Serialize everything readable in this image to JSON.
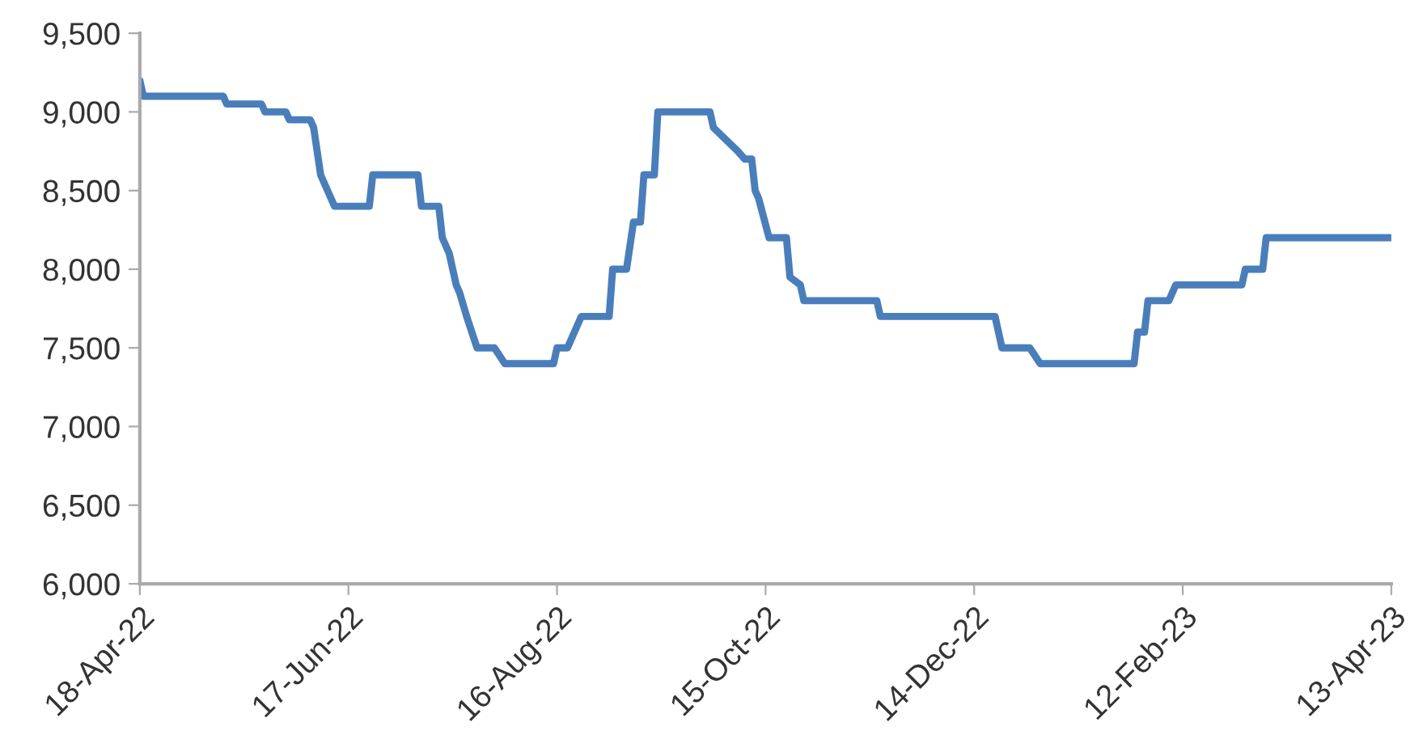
{
  "chart_data": {
    "type": "line",
    "x": [
      "2022-04-18",
      "2022-04-19",
      "2022-05-12",
      "2022-05-13",
      "2022-05-23",
      "2022-05-24",
      "2022-05-30",
      "2022-05-31",
      "2022-06-06",
      "2022-06-07",
      "2022-06-09",
      "2022-06-11",
      "2022-06-13",
      "2022-06-23",
      "2022-06-24",
      "2022-07-07",
      "2022-07-08",
      "2022-07-13",
      "2022-07-14",
      "2022-07-16",
      "2022-07-18",
      "2022-07-19",
      "2022-07-21",
      "2022-07-24",
      "2022-07-29",
      "2022-08-01",
      "2022-08-15",
      "2022-08-16",
      "2022-08-19",
      "2022-08-21",
      "2022-08-23",
      "2022-08-31",
      "2022-09-01",
      "2022-09-05",
      "2022-09-07",
      "2022-09-09",
      "2022-09-10",
      "2022-09-13",
      "2022-09-14",
      "2022-09-29",
      "2022-09-30",
      "2022-10-07",
      "2022-10-09",
      "2022-10-11",
      "2022-10-12",
      "2022-10-13",
      "2022-10-16",
      "2022-10-21",
      "2022-10-22",
      "2022-10-25",
      "2022-10-26",
      "2022-11-16",
      "2022-11-17",
      "2022-12-20",
      "2022-12-22",
      "2022-12-30",
      "2023-01-02",
      "2023-01-29",
      "2023-01-30",
      "2023-02-01",
      "2023-02-02",
      "2023-02-08",
      "2023-02-10",
      "2023-03-01",
      "2023-03-02",
      "2023-03-07",
      "2023-03-08",
      "2023-04-13"
    ],
    "series": [
      {
        "color": "#4a7ebb",
        "values": [
          9200,
          9100,
          9100,
          9050,
          9050,
          9000,
          9000,
          8950,
          8950,
          8900,
          8600,
          8500,
          8400,
          8400,
          8600,
          8600,
          8400,
          8400,
          8200,
          8100,
          7900,
          7850,
          7700,
          7500,
          7500,
          7400,
          7400,
          7500,
          7500,
          7600,
          7700,
          7700,
          8000,
          8000,
          8300,
          8300,
          8600,
          8600,
          9000,
          9000,
          8900,
          8750,
          8700,
          8700,
          8500,
          8450,
          8200,
          8200,
          7950,
          7900,
          7800,
          7800,
          7700,
          7700,
          7500,
          7500,
          7400,
          7400,
          7600,
          7600,
          7800,
          7800,
          7900,
          7900,
          8000,
          8000,
          8200,
          8200
        ]
      }
    ],
    "xlim": [
      "2022-04-18",
      "2023-04-13"
    ],
    "xticks": [
      {
        "value": "2022-04-18",
        "label": "18-Apr-22"
      },
      {
        "value": "2022-06-17",
        "label": "17-Jun-22"
      },
      {
        "value": "2022-08-16",
        "label": "16-Aug-22"
      },
      {
        "value": "2022-10-15",
        "label": "15-Oct-22"
      },
      {
        "value": "2022-12-14",
        "label": "14-Dec-22"
      },
      {
        "value": "2023-02-12",
        "label": "12-Feb-23"
      },
      {
        "value": "2023-04-13",
        "label": "13-Apr-23"
      }
    ],
    "ylim": [
      6000,
      9500
    ],
    "yticks": [
      {
        "value": 6000,
        "label": "6,000"
      },
      {
        "value": 6500,
        "label": "6,500"
      },
      {
        "value": 7000,
        "label": "7,000"
      },
      {
        "value": 7500,
        "label": "7,500"
      },
      {
        "value": 8000,
        "label": "8,000"
      },
      {
        "value": 8500,
        "label": "8,500"
      },
      {
        "value": 9000,
        "label": "9,000"
      },
      {
        "value": 9500,
        "label": "9,500"
      }
    ],
    "grid": false,
    "marker": "none",
    "line_style": "solid"
  }
}
